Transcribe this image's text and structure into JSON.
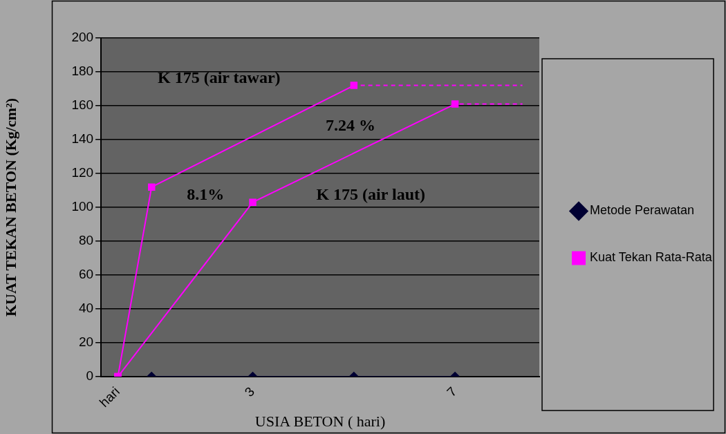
{
  "chart_data": {
    "type": "line",
    "categories": [
      "hari",
      null,
      null,
      null,
      "3",
      null,
      null,
      null,
      null,
      null,
      "7",
      null,
      null
    ],
    "xlabel": "USIA BETON ( hari)",
    "ylabel": "KUAT TEKAN BETON (Kg/cm²)",
    "ylim": [
      0,
      200
    ],
    "yticks": [
      0,
      20,
      40,
      60,
      80,
      100,
      120,
      140,
      160,
      180,
      200
    ],
    "grid": "y",
    "legend": "right",
    "annotations": [
      "K 175 (air tawar)",
      "7.24 %",
      "8.1%",
      "K 175 (air laut)"
    ],
    "series": [
      {
        "name": "Metode Perawatan",
        "color": "#000033",
        "marker": "diamond",
        "values": [
          null,
          0,
          null,
          null,
          0,
          null,
          null,
          0,
          null,
          null,
          0,
          null,
          null
        ]
      },
      {
        "name": "Kuat Tekan Rata-Rata",
        "color": "#ff00ff",
        "marker": "square",
        "values": [
          0,
          112,
          null,
          null,
          null,
          null,
          null,
          172,
          null,
          null,
          null,
          null,
          null
        ]
      },
      {
        "color": "#ff00ff",
        "marker": "square",
        "values": [
          0,
          null,
          null,
          null,
          103,
          null,
          null,
          null,
          null,
          null,
          161,
          null,
          null
        ]
      },
      {
        "color": "#ff00ff",
        "marker": "none",
        "line_style": "dashed",
        "values": [
          null,
          null,
          null,
          null,
          null,
          null,
          null,
          172,
          172,
          172,
          172,
          172,
          172
        ]
      },
      {
        "color": "#ff00ff",
        "marker": "none",
        "line_style": "dashed",
        "values": [
          null,
          null,
          null,
          null,
          null,
          null,
          null,
          null,
          null,
          null,
          161,
          161,
          161
        ]
      }
    ]
  }
}
